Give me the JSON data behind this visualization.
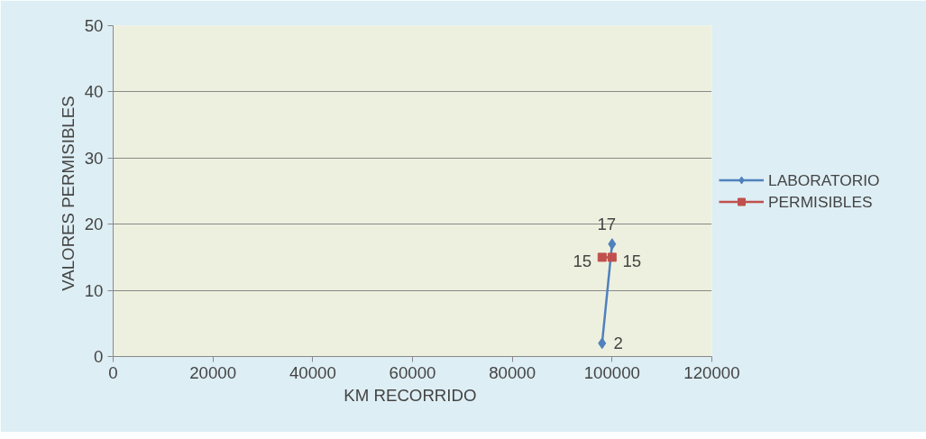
{
  "chart_data": {
    "type": "line",
    "xlabel": "KM  RECORRIDO",
    "ylabel": "VALORES  PERMISIBLES",
    "xlim": [
      0,
      120000
    ],
    "xticks": [
      0,
      20000,
      40000,
      60000,
      80000,
      100000,
      120000
    ],
    "ylim": [
      0,
      50
    ],
    "yticks": [
      0,
      10,
      20,
      30,
      40,
      50
    ],
    "grid": "y",
    "legend": "right",
    "data_labels": true,
    "x": [
      98000,
      100000
    ],
    "series": [
      {
        "name": "LABORATORIO",
        "color": "#4f81bd",
        "values": [
          2,
          17
        ],
        "marker": "diamond"
      },
      {
        "name": "PERMISIBLES",
        "color": "#c0504d",
        "values": [
          15,
          15
        ],
        "marker": "square"
      }
    ]
  }
}
